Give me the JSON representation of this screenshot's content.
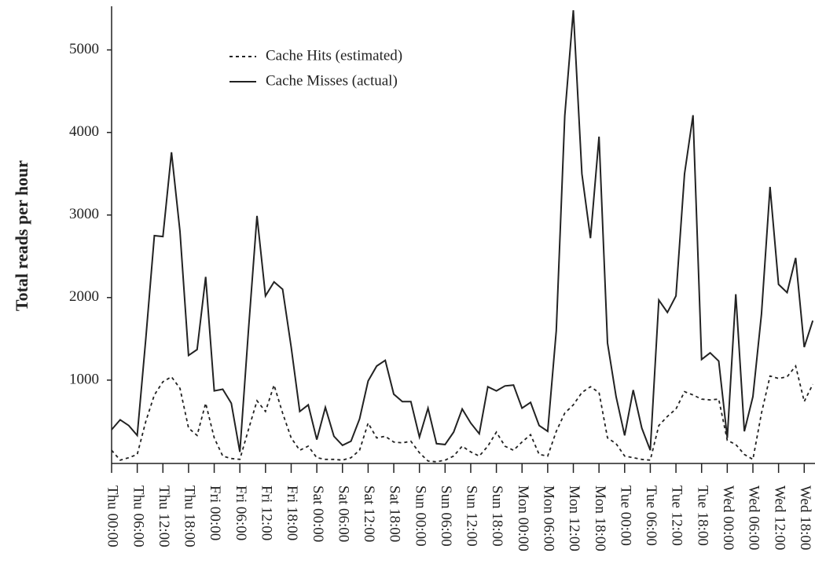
{
  "chart_data": {
    "type": "line",
    "y_label": "Total reads per hour",
    "categories": [
      "Thu 00:00",
      null,
      null,
      "Thu 06:00",
      null,
      null,
      "Thu 12:00",
      null,
      null,
      "Thu 18:00",
      null,
      null,
      "Fri 00:00",
      null,
      null,
      "Fri 06:00",
      null,
      null,
      "Fri 12:00",
      null,
      null,
      "Fri 18:00",
      null,
      null,
      "Sat 00:00",
      null,
      null,
      "Sat 06:00",
      null,
      null,
      "Sat 12:00",
      null,
      null,
      "Sat 18:00",
      null,
      null,
      "Sun 00:00",
      null,
      null,
      "Sun 06:00",
      null,
      null,
      "Sun 12:00",
      null,
      null,
      "Sun 18:00",
      null,
      null,
      "Mon 00:00",
      null,
      null,
      "Mon 06:00",
      null,
      null,
      "Mon 12:00",
      null,
      null,
      "Mon 18:00",
      null,
      null,
      "Tue 00:00",
      null,
      null,
      "Tue 06:00",
      null,
      null,
      "Tue 12:00",
      null,
      null,
      "Tue 18:00",
      null,
      null,
      "Wed 00:00",
      null,
      null,
      "Wed 06:00",
      null,
      null,
      "Wed 12:00",
      null,
      null,
      "Wed 18:00",
      null
    ],
    "series": [
      {
        "name": "Cache Hits (estimated)",
        "color": "#222222",
        "dashed": true,
        "values": [
          150,
          30,
          60,
          100,
          500,
          820,
          980,
          1040,
          900,
          420,
          330,
          720,
          300,
          80,
          50,
          40,
          400,
          750,
          620,
          940,
          600,
          300,
          150,
          200,
          60,
          40,
          40,
          30,
          60,
          150,
          480,
          300,
          320,
          250,
          240,
          260,
          120,
          20,
          10,
          30,
          80,
          200,
          130,
          80,
          200,
          370,
          200,
          150,
          250,
          340,
          100,
          80,
          380,
          600,
          700,
          850,
          920,
          850,
          300,
          230,
          80,
          60,
          40,
          30,
          450,
          560,
          650,
          860,
          820,
          770,
          760,
          770,
          270,
          220,
          100,
          40,
          600,
          1050,
          1020,
          1040,
          1170,
          740,
          950
        ]
      },
      {
        "name": "Cache Misses (actual)",
        "color": "#222222",
        "dashed": false,
        "values": [
          400,
          520,
          450,
          330,
          1500,
          2750,
          2740,
          3760,
          2800,
          1300,
          1370,
          2250,
          870,
          890,
          720,
          130,
          1600,
          2990,
          2020,
          2190,
          2100,
          1400,
          620,
          700,
          280,
          670,
          320,
          210,
          260,
          530,
          990,
          1170,
          1240,
          830,
          740,
          740,
          310,
          660,
          230,
          220,
          370,
          650,
          480,
          350,
          920,
          870,
          930,
          940,
          660,
          730,
          450,
          380,
          1600,
          4200,
          5480,
          3500,
          2720,
          3950,
          1450,
          800,
          330,
          880,
          420,
          150,
          1970,
          1820,
          2020,
          3500,
          4210,
          1250,
          1330,
          1230,
          300,
          2040,
          380,
          800,
          1800,
          3340,
          2160,
          2060,
          2480,
          1400,
          1720
        ]
      }
    ],
    "ylim": [
      0,
      5500
    ],
    "yticks": [
      1000,
      2000,
      3000,
      4000,
      5000
    ]
  }
}
